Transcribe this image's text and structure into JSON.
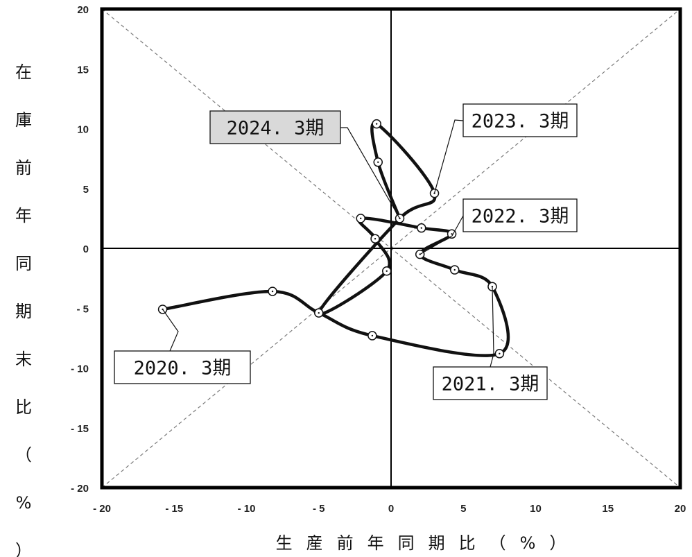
{
  "chart_data": {
    "type": "line",
    "xlabel": "生産前年同期比（%）",
    "ylabel": "在庫前年同期末比（%）",
    "xlim": [
      -20,
      20
    ],
    "ylim": [
      -20,
      20
    ],
    "x_ticks": [
      "- 20",
      "- 15",
      "- 10",
      "- 5",
      "0",
      "5",
      "10",
      "15",
      "20"
    ],
    "y_ticks": [
      "20",
      "15",
      "10",
      "5",
      "0",
      "- 5",
      "- 10",
      "- 15",
      "- 20"
    ],
    "grid": false,
    "reference_lines": [
      "y=x (dashed)",
      "y=-x (dashed)",
      "x=0",
      "y=0"
    ],
    "series": [
      {
        "points": [
          {
            "x": -15.8,
            "y": -5.1
          },
          {
            "x": -8.2,
            "y": -3.6
          },
          {
            "x": -5.0,
            "y": -5.4
          },
          {
            "x": -1.3,
            "y": -7.3
          },
          {
            "x": 7.5,
            "y": -8.8
          },
          {
            "x": 7.0,
            "y": -3.2
          },
          {
            "x": 4.4,
            "y": -1.8
          },
          {
            "x": 2.0,
            "y": -0.5
          },
          {
            "x": 4.2,
            "y": 1.2
          },
          {
            "x": 2.1,
            "y": 1.7
          },
          {
            "x": -2.1,
            "y": 2.5
          },
          {
            "x": -1.1,
            "y": 0.8
          },
          {
            "x": -0.3,
            "y": -1.9
          },
          {
            "x": -5.0,
            "y": -5.4
          },
          {
            "x": 0.6,
            "y": 2.5
          },
          {
            "x": 3.0,
            "y": 4.6
          },
          {
            "x": -1.0,
            "y": 10.4
          },
          {
            "x": -0.9,
            "y": 7.2
          },
          {
            "x": 0.6,
            "y": 2.5
          }
        ]
      }
    ],
    "annotations": [
      {
        "text": "2020. 3期",
        "x": -15.8,
        "y": -5.1,
        "highlight": false
      },
      {
        "text": "2021. 3期",
        "x": 7.0,
        "y": -3.2,
        "highlight": false
      },
      {
        "text": "2022. 3期",
        "x": 2.0,
        "y": -0.5,
        "highlight": false
      },
      {
        "text": "2023. 3期",
        "x": 3.0,
        "y": 4.6,
        "highlight": false
      },
      {
        "text": "2024. 3期",
        "x": 0.6,
        "y": 2.5,
        "highlight": true
      }
    ],
    "colors": {
      "line": "#111111",
      "highlight_box": "#d9d9d9",
      "diagonal": "#7a7a7a"
    }
  }
}
